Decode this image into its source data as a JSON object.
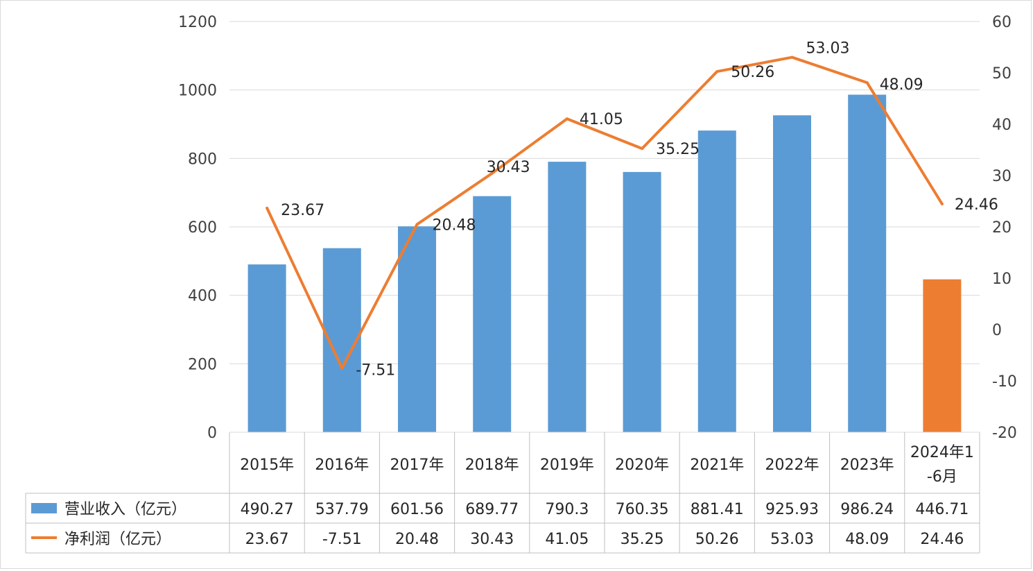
{
  "chart_data": {
    "type": "bar",
    "categories": [
      "2015年",
      "2016年",
      "2017年",
      "2018年",
      "2019年",
      "2020年",
      "2021年",
      "2022年",
      "2023年",
      [
        "2024年1",
        "-6月"
      ]
    ],
    "series": [
      {
        "name": "营业收入（亿元）",
        "type": "bar",
        "axis": "left",
        "color": "#5b9bd5",
        "highlight_color": "#ed7d31",
        "highlight_index": 9,
        "values": [
          490.27,
          537.79,
          601.56,
          689.77,
          790.3,
          760.35,
          881.41,
          925.93,
          986.24,
          446.71
        ],
        "table_values": [
          "490.27",
          "537.79",
          "601.56",
          "689.77",
          "790.3",
          "760.35",
          "881.41",
          "925.93",
          "986.24",
          "446.71"
        ]
      },
      {
        "name": "净利润（亿元）",
        "type": "line",
        "axis": "right",
        "color": "#ed7d31",
        "values": [
          23.67,
          -7.51,
          20.48,
          30.43,
          41.05,
          35.25,
          50.26,
          53.03,
          48.09,
          24.46
        ],
        "table_values": [
          "23.67",
          "-7.51",
          "20.48",
          "30.43",
          "41.05",
          "35.25",
          "50.26",
          "53.03",
          "48.09",
          "24.46"
        ]
      }
    ],
    "ylim_left": [
      0,
      1200
    ],
    "yticks_left": [
      0,
      200,
      400,
      600,
      800,
      1000,
      1200
    ],
    "ylim_right": [
      -20,
      60
    ],
    "yticks_right": [
      -20,
      -10,
      0,
      10,
      20,
      30,
      40,
      50,
      60
    ],
    "grid": true,
    "legend": "data-table",
    "title": "",
    "xlabel": "",
    "ylabel": ""
  }
}
